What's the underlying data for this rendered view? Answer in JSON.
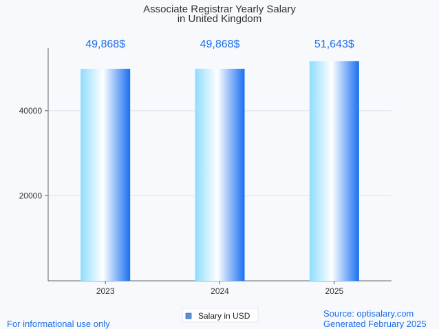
{
  "chart_data": {
    "type": "bar",
    "title_lines": [
      "Associate Registrar Yearly Salary",
      "in United Kingdom"
    ],
    "categories": [
      "2023",
      "2024",
      "2025"
    ],
    "series": [
      {
        "name": "Salary in USD",
        "values": [
          49868,
          49868,
          51643
        ]
      }
    ],
    "data_labels": [
      "49,868$",
      "49,868$",
      "51,643$"
    ],
    "y_ticks": [
      20000,
      40000
    ],
    "ylim": [
      0,
      56000
    ],
    "xlabel": "",
    "ylabel": "",
    "grid": true,
    "legend_position": "bottom-center"
  },
  "footer": {
    "left": "For informational use only",
    "source": "Source: optisalary.com",
    "generated": "Generated February 2025"
  },
  "colors": {
    "bar_light": "#8fdcff",
    "bar_mid": "#ffffff",
    "bar_dark": "#1a6ff2",
    "label": "#1f6ee8",
    "legend_swatch": "#5b8fd6"
  }
}
